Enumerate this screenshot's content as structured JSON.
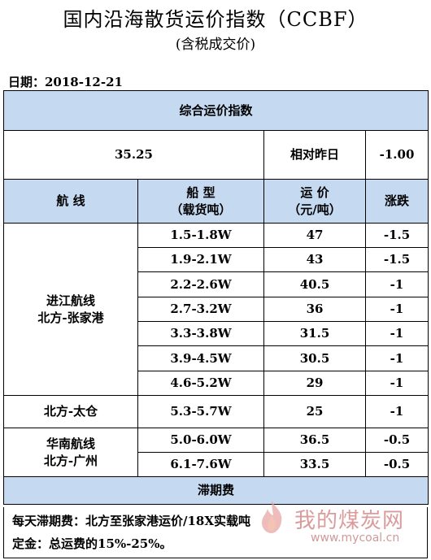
{
  "header": {
    "title": "国内沿海散货运价指数（CCBF）",
    "subtitle": "(含税成交价)",
    "date": "日期：2018-12-21"
  },
  "index": {
    "section_title": "综合运价指数",
    "value": "35.25",
    "compare_label": "相对昨日",
    "change": "-1.00"
  },
  "columns": {
    "route": "航  线",
    "ship_type_line1": "船  型",
    "ship_type_line2": "（载货吨）",
    "freight_line1": "运  价",
    "freight_line2": "（元/吨）",
    "change": "涨跌"
  },
  "groups": [
    {
      "route_line1": "进江航线",
      "route_line2": "北方-张家港",
      "rows": [
        {
          "ship": "1.5-1.8W",
          "price": "47",
          "change": "-1.5"
        },
        {
          "ship": "1.9-2.1W",
          "price": "43",
          "change": "-1.5"
        },
        {
          "ship": "2.2-2.6W",
          "price": "40.5",
          "change": "-1"
        },
        {
          "ship": "2.7-3.2W",
          "price": "36",
          "change": "-1"
        },
        {
          "ship": "3.3-3.8W",
          "price": "31.5",
          "change": "-1"
        },
        {
          "ship": "3.9-4.5W",
          "price": "30.5",
          "change": "-1"
        },
        {
          "ship": "4.6-5.2W",
          "price": "29",
          "change": "-1"
        }
      ]
    },
    {
      "route_line1": "北方-太仓",
      "route_line2": "",
      "rows": [
        {
          "ship": "5.3-5.7W",
          "price": "25",
          "change": "-1"
        }
      ]
    },
    {
      "route_line1": "华南航线",
      "route_line2": "北方-广州",
      "rows": [
        {
          "ship": "5.0-6.0W",
          "price": "36.5",
          "change": "-0.5"
        },
        {
          "ship": "6.1-7.6W",
          "price": "33.5",
          "change": "-0.5"
        }
      ]
    }
  ],
  "demurrage": {
    "section_title": "滞期费",
    "line1": "每天滞期费：北方至张家港运价/18X实载吨",
    "line2": "定金：总运费的15%-25%。"
  },
  "watermark": {
    "text": "我的煤炭网",
    "url": "www.mycoal.cn",
    "logo_icon": "flame-logo-icon"
  },
  "colors": {
    "header_fill": "#c5d9f1",
    "watermark": "#d07a7a"
  }
}
